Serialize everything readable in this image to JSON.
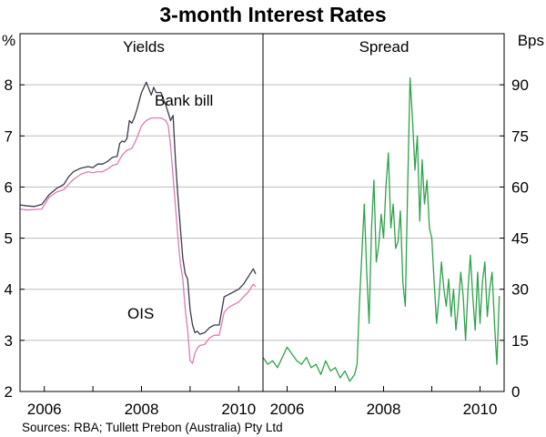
{
  "title": "3-month Interest Rates",
  "source": "Sources: RBA; Tullett Prebon (Australia) Pty Ltd",
  "colors": {
    "bank_bill": "#3a3b4c",
    "ois": "#e07ab3",
    "spread": "#2ea24a",
    "axis": "#000000",
    "grid": "#bdbdbd"
  },
  "chart_data": [
    {
      "type": "line",
      "panel_title": "Yields",
      "ylabel": "%",
      "ylim": [
        2,
        9
      ],
      "yticks": [
        2,
        3,
        4,
        5,
        6,
        7,
        8
      ],
      "xlim": [
        2005.5,
        2010.5
      ],
      "xticks": [
        2006,
        2008,
        2010
      ],
      "grid": true,
      "series": [
        {
          "name": "Bank bill",
          "label_text": "Bank bill",
          "x": [
            2005.5,
            2005.65,
            2005.8,
            2005.95,
            2006.1,
            2006.25,
            2006.4,
            2006.5,
            2006.6,
            2006.75,
            2006.9,
            2007.0,
            2007.1,
            2007.2,
            2007.3,
            2007.4,
            2007.5,
            2007.55,
            2007.6,
            2007.65,
            2007.7,
            2007.75,
            2007.8,
            2007.85,
            2007.9,
            2008.0,
            2008.1,
            2008.2,
            2008.25,
            2008.3,
            2008.4,
            2008.5,
            2008.55,
            2008.6,
            2008.65,
            2008.7,
            2008.75,
            2008.8,
            2008.85,
            2008.9,
            2008.95,
            2009.0,
            2009.05,
            2009.1,
            2009.15,
            2009.2,
            2009.3,
            2009.4,
            2009.5,
            2009.6,
            2009.7,
            2009.8,
            2009.9,
            2010.0,
            2010.1,
            2010.2,
            2010.3,
            2010.35
          ],
          "values": [
            5.65,
            5.63,
            5.62,
            5.66,
            5.85,
            5.97,
            6.05,
            6.2,
            6.3,
            6.37,
            6.4,
            6.38,
            6.45,
            6.45,
            6.5,
            6.58,
            6.6,
            6.85,
            6.9,
            6.88,
            6.95,
            7.3,
            7.25,
            7.35,
            7.5,
            7.85,
            8.05,
            7.8,
            7.95,
            7.85,
            7.85,
            7.6,
            7.45,
            7.3,
            7.4,
            6.5,
            5.8,
            5.2,
            4.6,
            4.3,
            4.2,
            3.6,
            3.3,
            3.15,
            3.18,
            3.12,
            3.15,
            3.25,
            3.3,
            3.3,
            3.85,
            3.9,
            3.95,
            4.0,
            4.1,
            4.25,
            4.4,
            4.3
          ]
        },
        {
          "name": "OIS",
          "label_text": "OIS",
          "x": [
            2005.5,
            2005.65,
            2005.8,
            2005.95,
            2006.1,
            2006.25,
            2006.4,
            2006.5,
            2006.6,
            2006.75,
            2006.9,
            2007.0,
            2007.1,
            2007.2,
            2007.3,
            2007.4,
            2007.5,
            2007.6,
            2007.7,
            2007.8,
            2007.9,
            2008.0,
            2008.1,
            2008.2,
            2008.3,
            2008.4,
            2008.5,
            2008.55,
            2008.6,
            2008.65,
            2008.7,
            2008.75,
            2008.8,
            2008.85,
            2008.9,
            2008.95,
            2009.0,
            2009.05,
            2009.1,
            2009.15,
            2009.2,
            2009.3,
            2009.4,
            2009.5,
            2009.6,
            2009.7,
            2009.8,
            2009.9,
            2010.0,
            2010.1,
            2010.2,
            2010.3,
            2010.35
          ],
          "values": [
            5.57,
            5.55,
            5.56,
            5.57,
            5.8,
            5.9,
            5.95,
            6.05,
            6.15,
            6.25,
            6.3,
            6.28,
            6.3,
            6.3,
            6.35,
            6.42,
            6.45,
            6.62,
            6.72,
            6.75,
            6.95,
            7.2,
            7.3,
            7.35,
            7.35,
            7.35,
            7.3,
            7.2,
            6.8,
            6.2,
            5.6,
            5.0,
            4.5,
            4.2,
            3.6,
            3.2,
            2.6,
            2.55,
            2.75,
            2.85,
            2.9,
            2.92,
            3.05,
            3.1,
            3.1,
            3.55,
            3.65,
            3.7,
            3.75,
            3.85,
            3.95,
            4.1,
            4.05
          ]
        }
      ]
    },
    {
      "type": "line",
      "panel_title": "Spread",
      "ylabel": "Bps",
      "ylim": [
        0,
        105
      ],
      "yticks": [
        0,
        15,
        30,
        45,
        60,
        75,
        90
      ],
      "xlim": [
        2005.5,
        2010.5
      ],
      "xticks": [
        2006,
        2008,
        2010
      ],
      "grid": true,
      "series": [
        {
          "name": "Spread",
          "x": [
            2005.5,
            2005.6,
            2005.7,
            2005.8,
            2005.9,
            2006.0,
            2006.1,
            2006.2,
            2006.3,
            2006.4,
            2006.5,
            2006.6,
            2006.7,
            2006.8,
            2006.9,
            2007.0,
            2007.1,
            2007.2,
            2007.3,
            2007.4,
            2007.45,
            2007.5,
            2007.55,
            2007.6,
            2007.65,
            2007.7,
            2007.75,
            2007.8,
            2007.85,
            2007.9,
            2007.95,
            2008.0,
            2008.05,
            2008.1,
            2008.15,
            2008.2,
            2008.25,
            2008.3,
            2008.35,
            2008.4,
            2008.45,
            2008.5,
            2008.55,
            2008.6,
            2008.65,
            2008.7,
            2008.75,
            2008.8,
            2008.85,
            2008.9,
            2008.95,
            2009.0,
            2009.05,
            2009.1,
            2009.15,
            2009.2,
            2009.25,
            2009.3,
            2009.35,
            2009.4,
            2009.45,
            2009.5,
            2009.55,
            2009.6,
            2009.65,
            2009.7,
            2009.75,
            2009.8,
            2009.85,
            2009.9,
            2009.95,
            2010.0,
            2010.05,
            2010.1,
            2010.15,
            2010.2,
            2010.25,
            2010.3,
            2010.35,
            2010.4
          ],
          "values": [
            10,
            8,
            9,
            7,
            10,
            13,
            11,
            9,
            8,
            10,
            7,
            8,
            5,
            9,
            6,
            7,
            4,
            6,
            3,
            5,
            8,
            26,
            40,
            55,
            35,
            20,
            48,
            62,
            38,
            43,
            52,
            45,
            60,
            70,
            48,
            55,
            42,
            44,
            53,
            32,
            25,
            60,
            92,
            80,
            65,
            75,
            50,
            68,
            55,
            62,
            48,
            45,
            32,
            20,
            28,
            38,
            30,
            25,
            33,
            22,
            30,
            18,
            25,
            35,
            28,
            15,
            30,
            40,
            28,
            18,
            35,
            20,
            32,
            38,
            22,
            30,
            35,
            20,
            8,
            28
          ]
        }
      ]
    }
  ]
}
